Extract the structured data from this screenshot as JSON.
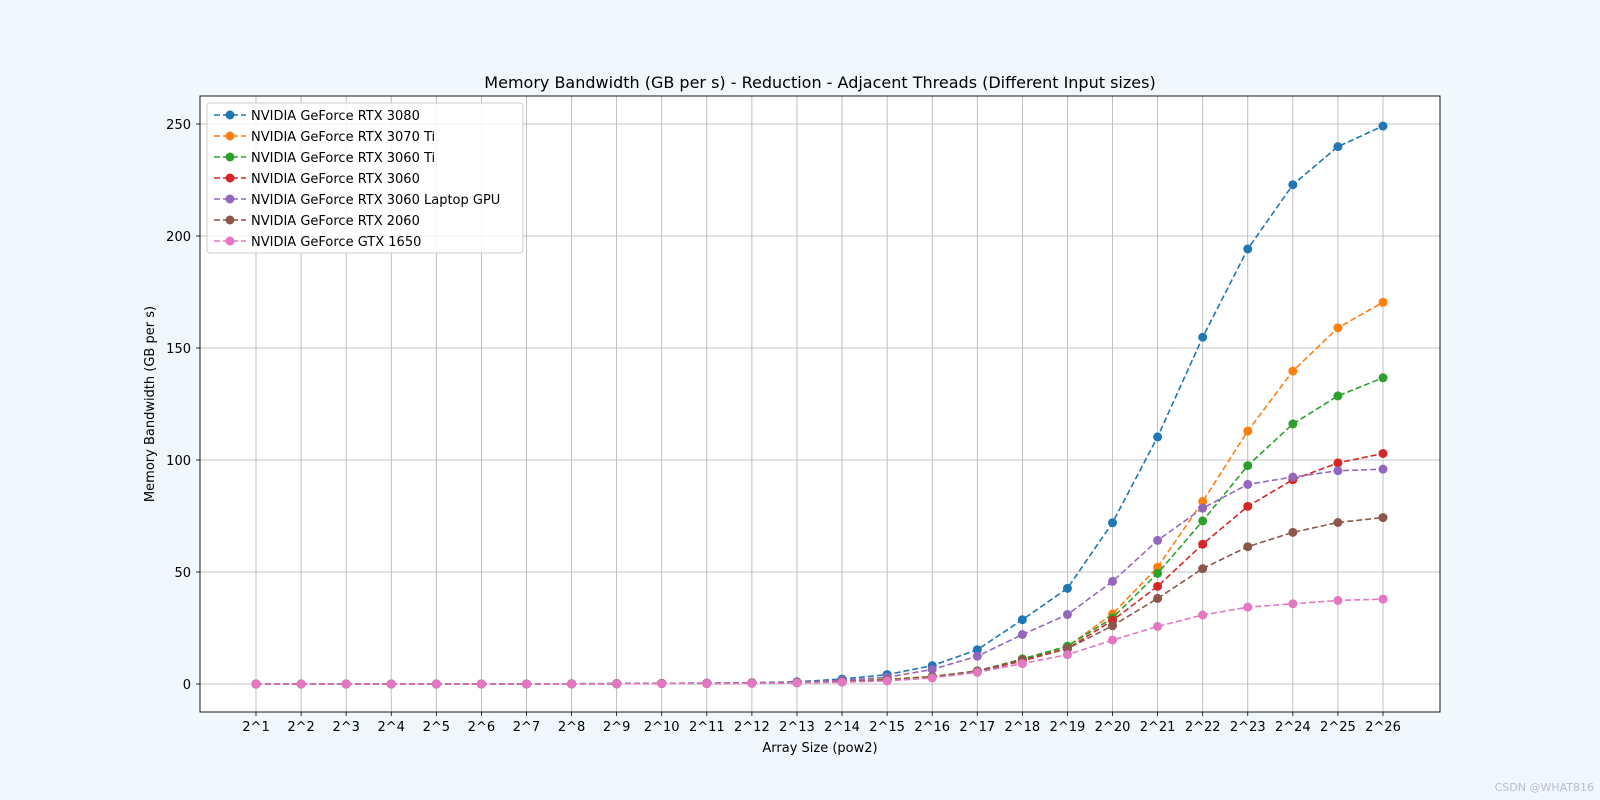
{
  "chart_data": {
    "type": "line",
    "title": "Memory Bandwidth (GB per s) - Reduction - Adjacent Threads (Different Input sizes)",
    "xlabel": "Array Size (pow2)",
    "ylabel": "Memory Bandwidth (GB per s)",
    "categories": [
      "2^1",
      "2^2",
      "2^3",
      "2^4",
      "2^5",
      "2^6",
      "2^7",
      "2^8",
      "2^9",
      "2^10",
      "2^11",
      "2^12",
      "2^13",
      "2^14",
      "2^15",
      "2^16",
      "2^17",
      "2^18",
      "2^19",
      "2^20",
      "2^21",
      "2^22",
      "2^23",
      "2^24",
      "2^25",
      "2^26"
    ],
    "yticks": [
      0,
      50,
      100,
      150,
      200,
      250
    ],
    "ylim": [
      -12.5,
      262.5
    ],
    "grid": true,
    "legend_position": "top-left",
    "series": [
      {
        "name": "NVIDIA GeForce RTX 3080",
        "color": "#1f77b4",
        "values": [
          0,
          0,
          0,
          0,
          0,
          0,
          0,
          0.1,
          0.2,
          0.3,
          0.4,
          0.6,
          1.0,
          2.2,
          4.2,
          8.2,
          15.3,
          28.7,
          42.7,
          72.0,
          110.3,
          154.8,
          194.2,
          222.9,
          239.9,
          249.1
        ]
      },
      {
        "name": "NVIDIA GeForce RTX 3070 Ti",
        "color": "#ff7f0e",
        "values": [
          0,
          0,
          0,
          0,
          0,
          0,
          0,
          0.1,
          0.1,
          0.2,
          0.3,
          0.5,
          0.7,
          1.2,
          2.1,
          3.4,
          5.8,
          10.8,
          16.7,
          31.3,
          52.1,
          81.5,
          112.9,
          139.7,
          159.0,
          170.4
        ]
      },
      {
        "name": "NVIDIA GeForce RTX 3060 Ti",
        "color": "#2ca02c",
        "values": [
          0,
          0,
          0,
          0,
          0,
          0,
          0,
          0.1,
          0.1,
          0.2,
          0.3,
          0.4,
          0.6,
          1.1,
          1.9,
          3.3,
          5.8,
          11.2,
          16.9,
          29.5,
          49.4,
          72.8,
          97.5,
          116.1,
          128.6,
          136.7
        ]
      },
      {
        "name": "NVIDIA GeForce RTX 3060",
        "color": "#d62728",
        "values": [
          0,
          0,
          0,
          0,
          0,
          0,
          0,
          0.1,
          0.1,
          0.2,
          0.2,
          0.4,
          0.6,
          1.0,
          1.8,
          3.0,
          5.5,
          10.3,
          15.8,
          28.4,
          43.6,
          62.4,
          79.3,
          91.2,
          98.7,
          102.9
        ]
      },
      {
        "name": "NVIDIA GeForce RTX 3060 Laptop GPU",
        "color": "#9467bd",
        "values": [
          0,
          0,
          0,
          0,
          0,
          0,
          0,
          0.1,
          0.2,
          0.3,
          0.4,
          0.5,
          0.8,
          1.6,
          3.0,
          6.5,
          12.4,
          22.1,
          31.0,
          45.8,
          64.1,
          78.5,
          89.1,
          92.4,
          95.2,
          95.9
        ]
      },
      {
        "name": "NVIDIA GeForce RTX 2060",
        "color": "#8c564b",
        "values": [
          0,
          0,
          0,
          0,
          0,
          0,
          0,
          0.1,
          0.1,
          0.2,
          0.2,
          0.4,
          0.6,
          1.0,
          1.8,
          3.1,
          5.8,
          10.8,
          15.8,
          26.0,
          38.2,
          51.5,
          61.3,
          67.7,
          72.1,
          74.3
        ]
      },
      {
        "name": "NVIDIA GeForce GTX 1650",
        "color": "#e377c2",
        "values": [
          0,
          0,
          0,
          0,
          0,
          0,
          0,
          0.1,
          0.1,
          0.1,
          0.2,
          0.3,
          0.5,
          0.8,
          1.4,
          2.7,
          5.2,
          9.1,
          13.1,
          19.6,
          25.7,
          30.8,
          34.3,
          35.8,
          37.3,
          37.9
        ]
      }
    ]
  },
  "watermark": "CSDN @WHAT816"
}
